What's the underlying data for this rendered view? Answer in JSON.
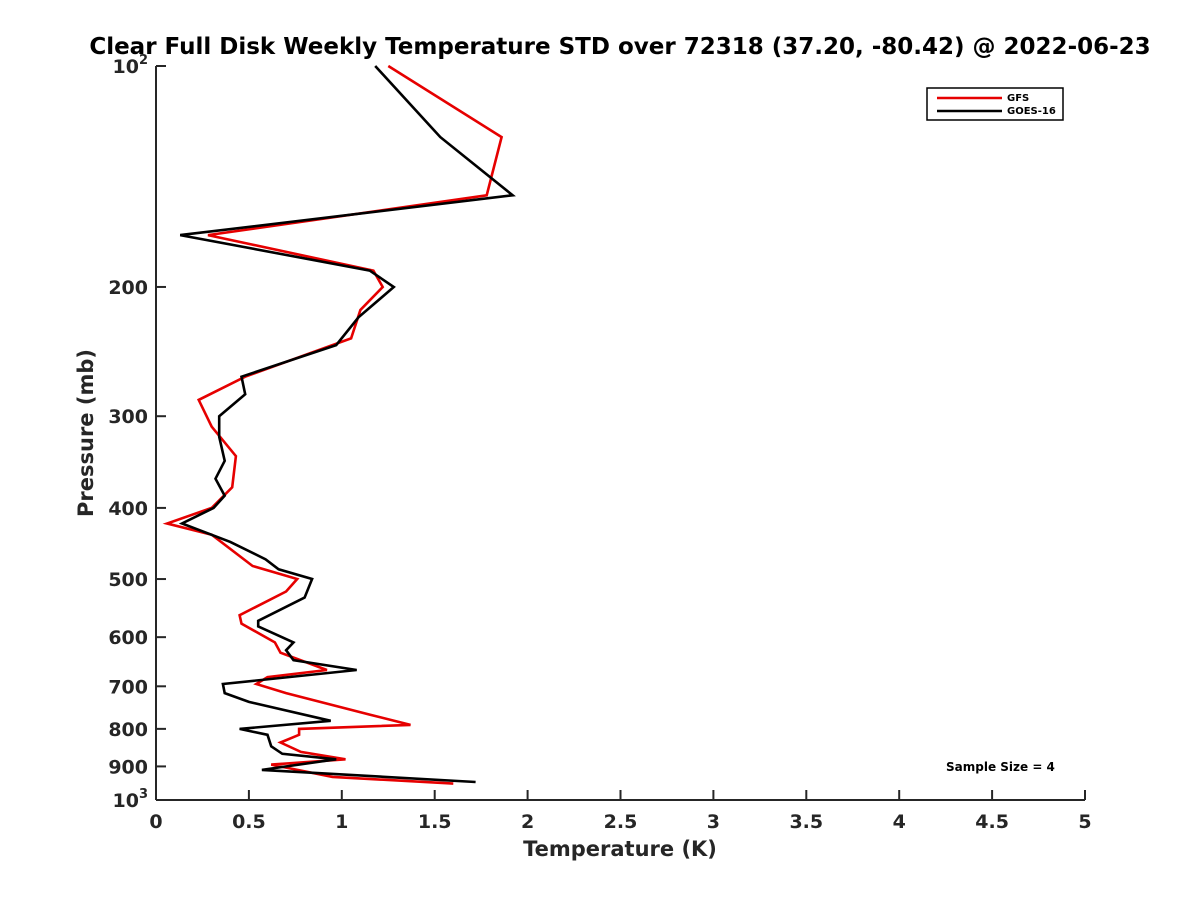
{
  "chart_data": {
    "type": "line",
    "title": "Clear Full Disk Weekly Temperature STD over 72318 (37.20, -80.42) @ 2022-06-23",
    "xlabel": "Temperature (K)",
    "ylabel": "Pressure (mb)",
    "xlim": [
      0,
      5
    ],
    "ylim": [
      1000,
      100
    ],
    "yscale": "log",
    "x_ticks": [
      "0",
      "0.5",
      "1",
      "1.5",
      "2",
      "2.5",
      "3",
      "3.5",
      "4",
      "4.5",
      "5"
    ],
    "y_ticks": [
      {
        "value": 100,
        "base": "10",
        "exp": "2"
      },
      {
        "value": 200,
        "label": "200"
      },
      {
        "value": 300,
        "label": "300"
      },
      {
        "value": 400,
        "label": "400"
      },
      {
        "value": 500,
        "label": "500"
      },
      {
        "value": 600,
        "label": "600"
      },
      {
        "value": 700,
        "label": "700"
      },
      {
        "value": 800,
        "label": "800"
      },
      {
        "value": 900,
        "label": "900"
      },
      {
        "value": 1000,
        "base": "10",
        "exp": "3"
      }
    ],
    "grid": false,
    "legend_position": "top-right",
    "annotation": "Sample Size = 4",
    "series": [
      {
        "name": "GFS",
        "color": "#e60000",
        "points": [
          [
            1.25,
            100
          ],
          [
            1.86,
            125
          ],
          [
            1.78,
            150
          ],
          [
            0.28,
            170
          ],
          [
            1.17,
            190
          ],
          [
            1.22,
            200
          ],
          [
            1.1,
            215
          ],
          [
            1.05,
            235
          ],
          [
            0.48,
            265
          ],
          [
            0.23,
            285
          ],
          [
            0.3,
            310
          ],
          [
            0.43,
            340
          ],
          [
            0.41,
            375
          ],
          [
            0.3,
            400
          ],
          [
            0.06,
            420
          ],
          [
            0.3,
            435
          ],
          [
            0.52,
            480
          ],
          [
            0.76,
            500
          ],
          [
            0.7,
            520
          ],
          [
            0.45,
            560
          ],
          [
            0.46,
            575
          ],
          [
            0.64,
            610
          ],
          [
            0.67,
            630
          ],
          [
            0.92,
            665
          ],
          [
            0.6,
            680
          ],
          [
            0.54,
            695
          ],
          [
            0.7,
            715
          ],
          [
            1.15,
            765
          ],
          [
            1.37,
            790
          ],
          [
            0.77,
            800
          ],
          [
            0.77,
            815
          ],
          [
            0.67,
            835
          ],
          [
            0.78,
            860
          ],
          [
            1.02,
            880
          ],
          [
            0.62,
            895
          ],
          [
            0.95,
            930
          ],
          [
            1.6,
            950
          ]
        ]
      },
      {
        "name": "GOES-16",
        "color": "#000000",
        "points": [
          [
            1.18,
            100
          ],
          [
            1.53,
            125
          ],
          [
            1.92,
            150
          ],
          [
            0.13,
            170
          ],
          [
            1.15,
            190
          ],
          [
            1.28,
            200
          ],
          [
            1.09,
            220
          ],
          [
            0.97,
            240
          ],
          [
            0.46,
            265
          ],
          [
            0.48,
            280
          ],
          [
            0.34,
            300
          ],
          [
            0.34,
            320
          ],
          [
            0.37,
            345
          ],
          [
            0.32,
            365
          ],
          [
            0.37,
            385
          ],
          [
            0.31,
            400
          ],
          [
            0.14,
            420
          ],
          [
            0.4,
            445
          ],
          [
            0.59,
            470
          ],
          [
            0.66,
            485
          ],
          [
            0.84,
            500
          ],
          [
            0.8,
            530
          ],
          [
            0.55,
            570
          ],
          [
            0.55,
            580
          ],
          [
            0.74,
            610
          ],
          [
            0.7,
            625
          ],
          [
            0.74,
            645
          ],
          [
            1.08,
            665
          ],
          [
            0.36,
            695
          ],
          [
            0.37,
            715
          ],
          [
            0.5,
            735
          ],
          [
            0.94,
            780
          ],
          [
            0.45,
            800
          ],
          [
            0.6,
            815
          ],
          [
            0.62,
            845
          ],
          [
            0.68,
            865
          ],
          [
            0.97,
            880
          ],
          [
            0.57,
            910
          ],
          [
            1.72,
            945
          ]
        ]
      }
    ]
  }
}
